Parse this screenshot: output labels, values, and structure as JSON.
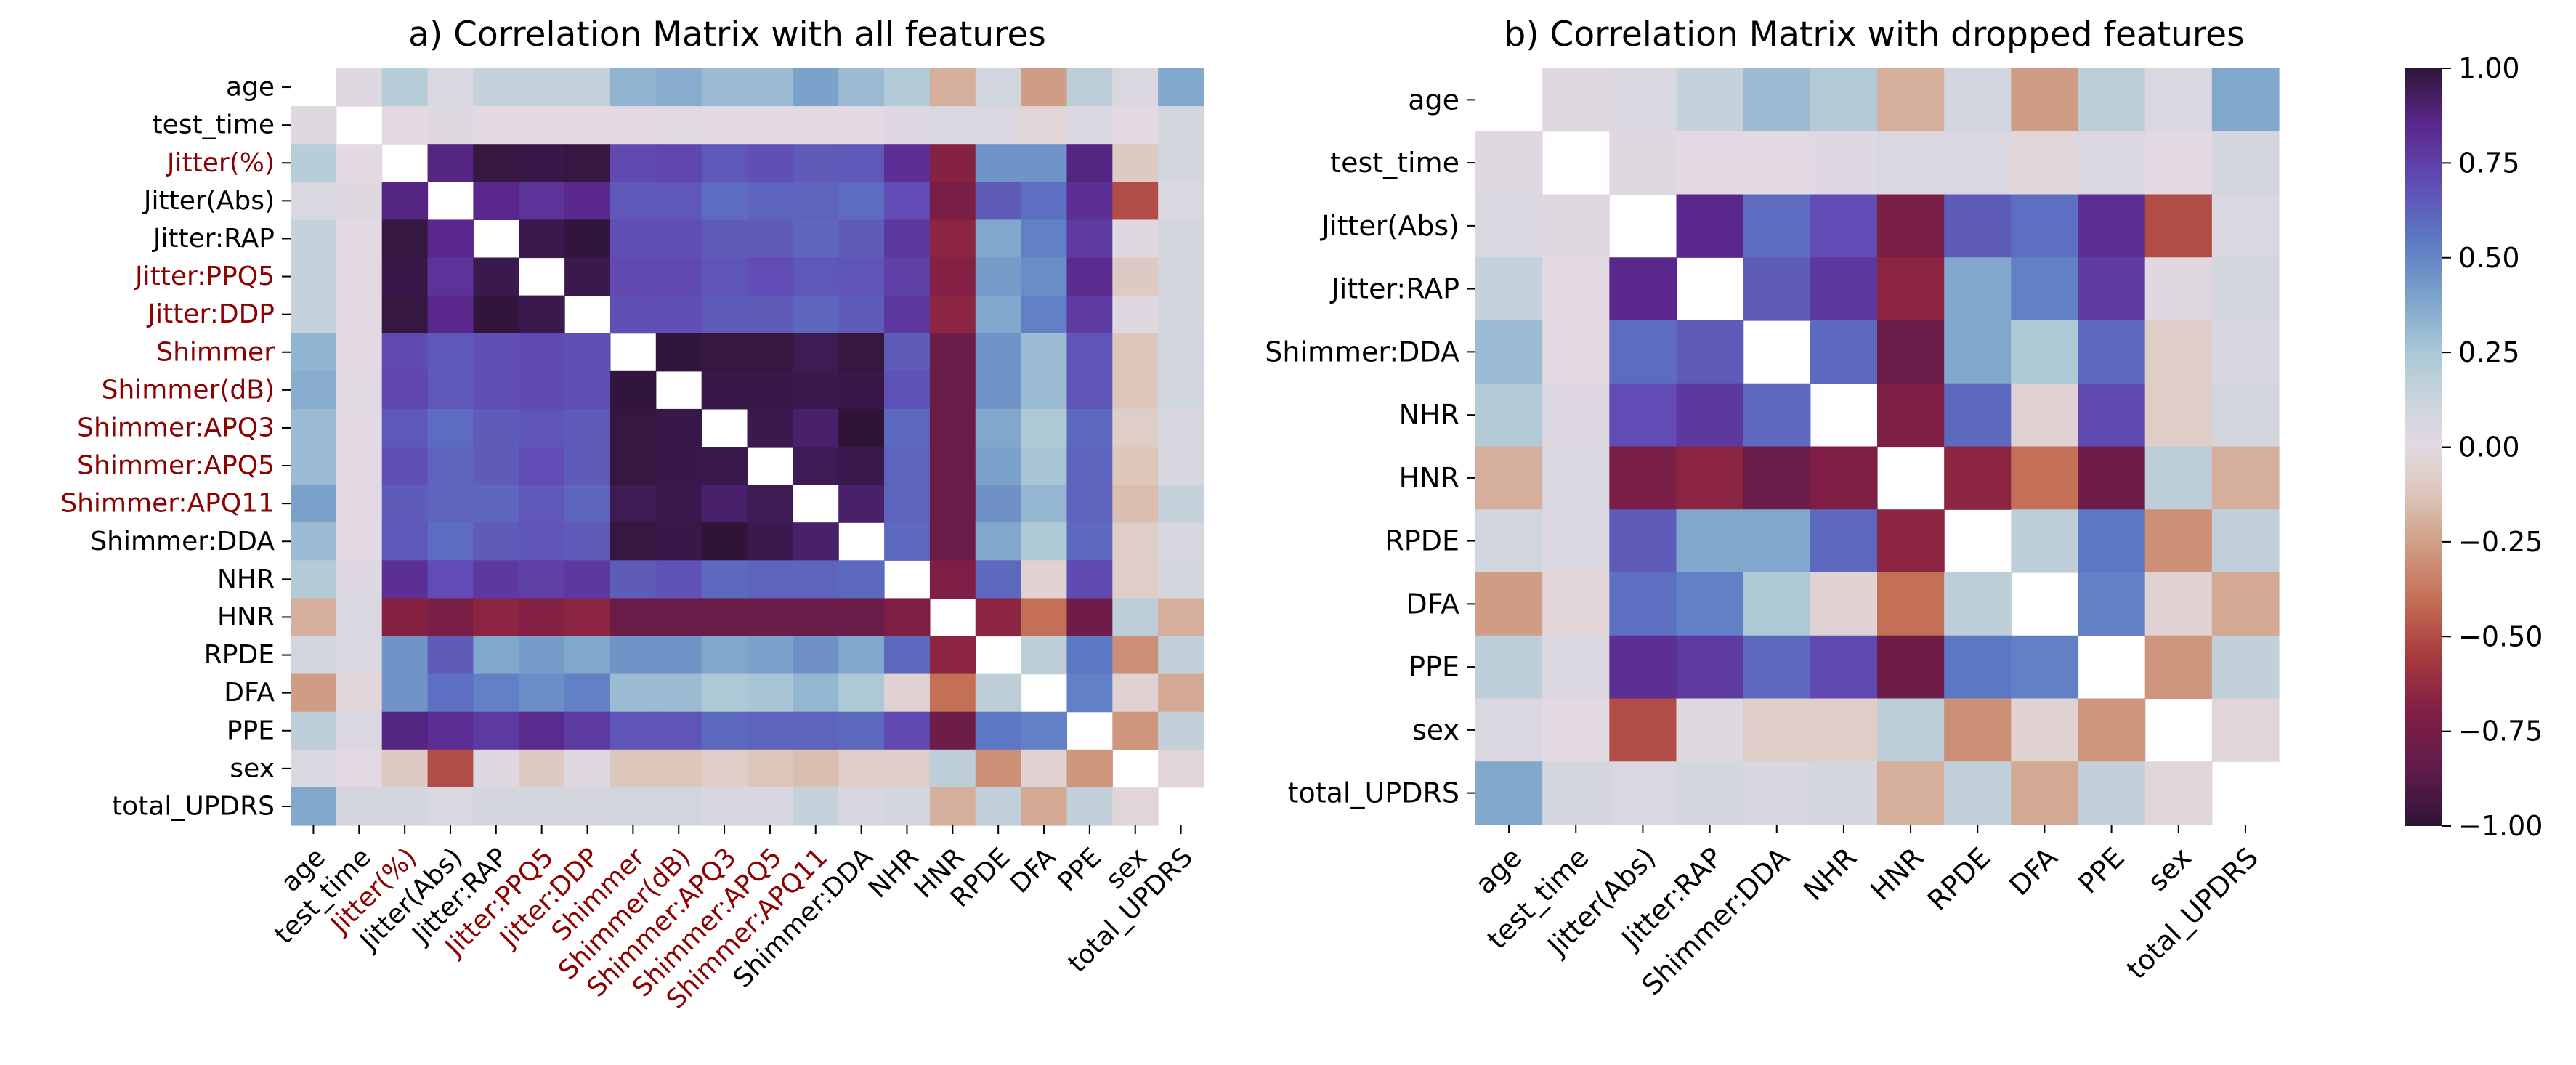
{
  "colors": {
    "highlight_label": "#8b0000",
    "normal_label": "#000000",
    "colormap": "twilight_shifted"
  },
  "colorbar": {
    "ticks": [
      1.0,
      0.75,
      0.5,
      0.25,
      0.0,
      -0.25,
      -0.5,
      -0.75,
      -1.0
    ],
    "tick_labels": [
      "1.00",
      "0.75",
      "0.50",
      "0.25",
      "0.00",
      "−0.25",
      "−0.50",
      "−0.75",
      "−1.00"
    ],
    "vmin": -1.0,
    "vmax": 1.0
  },
  "chart_data": [
    {
      "type": "heatmap",
      "title": "a) Correlation Matrix with all features",
      "labels": [
        "age",
        "test_time",
        "Jitter(%)",
        "Jitter(Abs)",
        "Jitter:RAP",
        "Jitter:PPQ5",
        "Jitter:DDP",
        "Shimmer",
        "Shimmer(dB)",
        "Shimmer:APQ3",
        "Shimmer:APQ5",
        "Shimmer:APQ11",
        "Shimmer:DDA",
        "NHR",
        "HNR",
        "RPDE",
        "DFA",
        "PPE",
        "sex",
        "total_UPDRS"
      ],
      "highlighted_labels": [
        "Jitter(%)",
        "Jitter:PPQ5",
        "Jitter:DDP",
        "Shimmer",
        "Shimmer(dB)",
        "Shimmer:APQ3",
        "Shimmer:APQ5",
        "Shimmer:APQ11"
      ],
      "masked_diagonal": true,
      "matrix": [
        [
          null,
          0.02,
          0.2,
          0.05,
          0.15,
          0.15,
          0.15,
          0.33,
          0.36,
          0.3,
          0.3,
          0.4,
          0.3,
          0.22,
          -0.2,
          0.1,
          -0.26,
          0.18,
          0.04,
          0.38
        ],
        [
          0.02,
          null,
          0.0,
          0.02,
          0.0,
          0.0,
          0.0,
          0.0,
          0.01,
          0.0,
          0.0,
          0.0,
          0.0,
          0.03,
          0.05,
          0.04,
          -0.03,
          0.04,
          0.0,
          0.08
        ],
        [
          0.2,
          0.0,
          null,
          0.87,
          0.98,
          0.97,
          0.98,
          0.71,
          0.72,
          0.66,
          0.69,
          0.65,
          0.66,
          0.82,
          -0.68,
          0.45,
          0.45,
          0.87,
          -0.1,
          0.08
        ],
        [
          0.05,
          0.02,
          0.87,
          null,
          0.85,
          0.8,
          0.85,
          0.66,
          0.66,
          0.59,
          0.62,
          0.62,
          0.59,
          0.7,
          -0.73,
          0.65,
          0.58,
          0.82,
          -0.5,
          0.05
        ],
        [
          0.15,
          0.0,
          0.98,
          0.85,
          null,
          0.96,
          0.99,
          0.69,
          0.69,
          0.65,
          0.65,
          0.61,
          0.65,
          0.78,
          -0.66,
          0.38,
          0.52,
          0.77,
          0.02,
          0.08
        ],
        [
          0.15,
          0.0,
          0.97,
          0.8,
          0.96,
          null,
          0.96,
          0.71,
          0.71,
          0.67,
          0.7,
          0.66,
          0.67,
          0.75,
          -0.69,
          0.42,
          0.48,
          0.84,
          -0.1,
          0.08
        ],
        [
          0.15,
          0.0,
          0.98,
          0.85,
          0.99,
          0.96,
          null,
          0.69,
          0.69,
          0.65,
          0.65,
          0.61,
          0.65,
          0.78,
          -0.66,
          0.38,
          0.52,
          0.77,
          0.02,
          0.08
        ],
        [
          0.33,
          0.0,
          0.71,
          0.66,
          0.69,
          0.71,
          0.69,
          null,
          0.99,
          0.98,
          0.98,
          0.95,
          0.98,
          0.65,
          -0.8,
          0.45,
          0.3,
          0.67,
          -0.12,
          0.1
        ],
        [
          0.36,
          0.01,
          0.72,
          0.66,
          0.69,
          0.71,
          0.69,
          0.99,
          null,
          0.97,
          0.97,
          0.96,
          0.97,
          0.68,
          -0.8,
          0.45,
          0.3,
          0.67,
          -0.12,
          0.1
        ],
        [
          0.3,
          0.0,
          0.66,
          0.59,
          0.65,
          0.67,
          0.65,
          0.98,
          0.97,
          null,
          0.96,
          0.91,
          1.0,
          0.6,
          -0.8,
          0.38,
          0.24,
          0.6,
          -0.08,
          0.06
        ],
        [
          0.3,
          0.0,
          0.69,
          0.62,
          0.65,
          0.7,
          0.65,
          0.98,
          0.97,
          0.96,
          null,
          0.95,
          0.96,
          0.62,
          -0.8,
          0.4,
          0.26,
          0.62,
          -0.12,
          0.06
        ],
        [
          0.4,
          0.0,
          0.65,
          0.62,
          0.61,
          0.66,
          0.61,
          0.95,
          0.96,
          0.91,
          0.95,
          null,
          0.91,
          0.62,
          -0.8,
          0.46,
          0.32,
          0.62,
          -0.15,
          0.15
        ],
        [
          0.3,
          0.0,
          0.66,
          0.59,
          0.65,
          0.67,
          0.65,
          0.98,
          0.97,
          1.0,
          0.96,
          0.91,
          null,
          0.6,
          -0.8,
          0.38,
          0.24,
          0.6,
          -0.08,
          0.06
        ],
        [
          0.22,
          0.03,
          0.82,
          0.7,
          0.78,
          0.75,
          0.78,
          0.65,
          0.68,
          0.6,
          0.62,
          0.62,
          0.6,
          null,
          -0.71,
          0.6,
          -0.05,
          0.71,
          -0.08,
          0.08
        ],
        [
          -0.2,
          0.05,
          -0.68,
          -0.73,
          -0.66,
          -0.69,
          -0.66,
          -0.8,
          -0.8,
          -0.8,
          -0.8,
          -0.8,
          -0.8,
          -0.71,
          null,
          -0.66,
          -0.4,
          -0.78,
          0.18,
          -0.2
        ],
        [
          0.1,
          0.04,
          0.45,
          0.65,
          0.38,
          0.42,
          0.38,
          0.45,
          0.45,
          0.38,
          0.4,
          0.46,
          0.38,
          0.6,
          -0.66,
          null,
          0.18,
          0.55,
          -0.3,
          0.17
        ],
        [
          -0.26,
          -0.03,
          0.45,
          0.58,
          0.52,
          0.48,
          0.52,
          0.3,
          0.3,
          0.24,
          0.26,
          0.32,
          0.24,
          -0.05,
          -0.4,
          0.18,
          null,
          0.52,
          -0.05,
          -0.22
        ],
        [
          0.18,
          0.04,
          0.87,
          0.82,
          0.77,
          0.84,
          0.77,
          0.67,
          0.67,
          0.6,
          0.62,
          0.62,
          0.6,
          0.71,
          -0.78,
          0.55,
          0.52,
          null,
          -0.28,
          0.16
        ],
        [
          0.04,
          0.0,
          -0.1,
          -0.5,
          0.02,
          -0.1,
          0.02,
          -0.12,
          -0.12,
          -0.08,
          -0.12,
          -0.15,
          -0.08,
          -0.08,
          0.18,
          -0.3,
          -0.05,
          -0.28,
          null,
          -0.03
        ],
        [
          0.38,
          0.08,
          0.08,
          0.05,
          0.08,
          0.08,
          0.08,
          0.1,
          0.1,
          0.06,
          0.06,
          0.15,
          0.06,
          0.08,
          -0.2,
          0.17,
          -0.22,
          0.16,
          -0.03,
          null
        ]
      ]
    },
    {
      "type": "heatmap",
      "title": "b) Correlation Matrix with dropped features",
      "labels": [
        "age",
        "test_time",
        "Jitter(Abs)",
        "Jitter:RAP",
        "Shimmer:DDA",
        "NHR",
        "HNR",
        "RPDE",
        "DFA",
        "PPE",
        "sex",
        "total_UPDRS"
      ],
      "highlighted_labels": [],
      "masked_diagonal": true,
      "matrix": [
        [
          null,
          0.02,
          0.05,
          0.15,
          0.3,
          0.22,
          -0.2,
          0.1,
          -0.26,
          0.18,
          0.04,
          0.38
        ],
        [
          0.02,
          null,
          0.02,
          0.0,
          0.0,
          0.03,
          0.05,
          0.04,
          -0.03,
          0.04,
          0.0,
          0.08
        ],
        [
          0.05,
          0.02,
          null,
          0.85,
          0.59,
          0.7,
          -0.73,
          0.65,
          0.58,
          0.82,
          -0.5,
          0.05
        ],
        [
          0.15,
          0.0,
          0.85,
          null,
          0.65,
          0.78,
          -0.66,
          0.38,
          0.52,
          0.77,
          0.02,
          0.08
        ],
        [
          0.3,
          0.0,
          0.59,
          0.65,
          null,
          0.6,
          -0.8,
          0.38,
          0.24,
          0.6,
          -0.08,
          0.06
        ],
        [
          0.22,
          0.03,
          0.7,
          0.78,
          0.6,
          null,
          -0.71,
          0.6,
          -0.05,
          0.71,
          -0.08,
          0.08
        ],
        [
          -0.2,
          0.05,
          -0.73,
          -0.66,
          -0.8,
          -0.71,
          null,
          -0.66,
          -0.4,
          -0.78,
          0.18,
          -0.2
        ],
        [
          0.1,
          0.04,
          0.65,
          0.38,
          0.38,
          0.6,
          -0.66,
          null,
          0.18,
          0.55,
          -0.3,
          0.17
        ],
        [
          -0.26,
          -0.03,
          0.58,
          0.52,
          0.24,
          -0.05,
          -0.4,
          0.18,
          null,
          0.52,
          -0.05,
          -0.22
        ],
        [
          0.18,
          0.04,
          0.82,
          0.77,
          0.6,
          0.71,
          -0.78,
          0.55,
          0.52,
          null,
          -0.28,
          0.16
        ],
        [
          0.04,
          0.0,
          -0.5,
          0.02,
          -0.08,
          -0.08,
          0.18,
          -0.3,
          -0.05,
          -0.28,
          null,
          -0.03
        ],
        [
          0.38,
          0.08,
          0.05,
          0.08,
          0.06,
          0.08,
          -0.2,
          0.17,
          -0.22,
          0.16,
          -0.03,
          null
        ]
      ]
    }
  ]
}
